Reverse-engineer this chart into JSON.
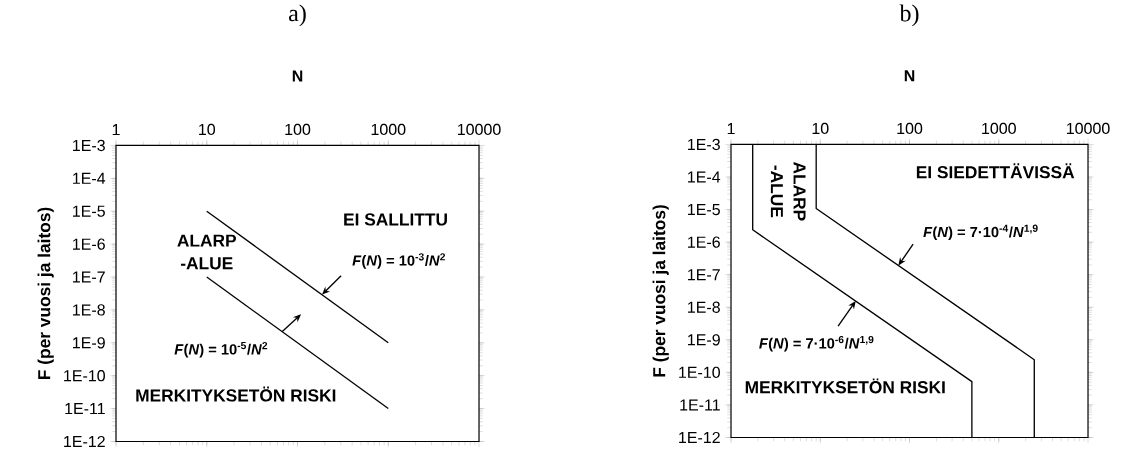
{
  "chart_data": [
    {
      "type": "line",
      "title": "a)",
      "xlabel": "N",
      "ylabel": "F (per vuosi ja laitos)",
      "log": "xy",
      "xlim": [
        1,
        10000
      ],
      "ylim": [
        1e-12,
        0.001
      ],
      "xticks": [
        1,
        10,
        100,
        1000,
        10000
      ],
      "yticks": [
        {
          "value": 1e-12,
          "label": "1E-12"
        },
        {
          "value": 1e-11,
          "label": "1E-11"
        },
        {
          "value": 1e-10,
          "label": "1E-10"
        },
        {
          "value": 1e-09,
          "label": "1E-9"
        },
        {
          "value": 1e-08,
          "label": "1E-8"
        },
        {
          "value": 1e-07,
          "label": "1E-7"
        },
        {
          "value": 1e-06,
          "label": "1E-6"
        },
        {
          "value": 1e-05,
          "label": "1E-5"
        },
        {
          "value": 0.0001,
          "label": "1E-4"
        },
        {
          "value": 0.001,
          "label": "1E-3"
        }
      ],
      "series": [
        {
          "color": "#000000",
          "x": [
            10,
            1000
          ],
          "values": [
            1e-05,
            1e-09
          ]
        },
        {
          "color": "#000000",
          "x": [
            10,
            1000
          ],
          "values": [
            1e-07,
            1e-11
          ]
        }
      ],
      "annotations": [
        "EI SALLITTU",
        "ALARP -ALUE",
        "MERKITYKSETÖN RISKI",
        {
          "text": "*F*(*N*) = 10$^{-3}$/*N*$^{2}$",
          "x": 186,
          "y": 2.9e-08
        },
        {
          "text": "*F*(*N*) = 10$^{-5}$/*N*$^{2}$",
          "x": 68,
          "y": 2.2e-09
        }
      ]
    },
    {
      "type": "line",
      "title": "b)",
      "xlabel": "N",
      "ylabel": "F (per vuosi ja laitos)",
      "log": "xy",
      "xlim": [
        1,
        10000
      ],
      "ylim": [
        1e-12,
        0.001
      ],
      "xticks": [
        1,
        10,
        100,
        1000,
        10000
      ],
      "yticks": [
        {
          "value": 1e-12,
          "label": "1E-12"
        },
        {
          "value": 1e-11,
          "label": "1E-11"
        },
        {
          "value": 1e-10,
          "label": "1E-10"
        },
        {
          "value": 1e-09,
          "label": "1E-9"
        },
        {
          "value": 1e-08,
          "label": "1E-8"
        },
        {
          "value": 1e-07,
          "label": "1E-7"
        },
        {
          "value": 1e-06,
          "label": "1E-6"
        },
        {
          "value": 1e-05,
          "label": "1E-5"
        },
        {
          "value": 0.0001,
          "label": "1E-4"
        },
        {
          "value": 0.001,
          "label": "1E-3"
        }
      ],
      "series": [
        {
          "color": "#000000",
          "x": [
            1.75,
            1.75,
            500,
            500
          ],
          "values": [
            0.001,
            2.4e-06,
            5.2e-11,
            1e-12
          ]
        },
        {
          "color": "#000000",
          "x": [
            9,
            9,
            2500,
            2500
          ],
          "values": [
            0.001,
            1.08e-05,
            2.45e-10,
            1e-12
          ]
        }
      ],
      "annotations": [
        "EI SIEDETTÄVISSÄ",
        "ALARP -ALUE",
        "MERKITYKSETÖN RISKI",
        {
          "text": "*F*(*N*) = 7·10$^{-4}$/*N*$^{1,9}$",
          "x": 75,
          "y": 1.9e-07
        },
        {
          "text": "*F*(*N*) = 7·10$^{-6}$/*N*$^{1,9}$",
          "x": 25,
          "y": 1.57e-08
        }
      ]
    }
  ]
}
